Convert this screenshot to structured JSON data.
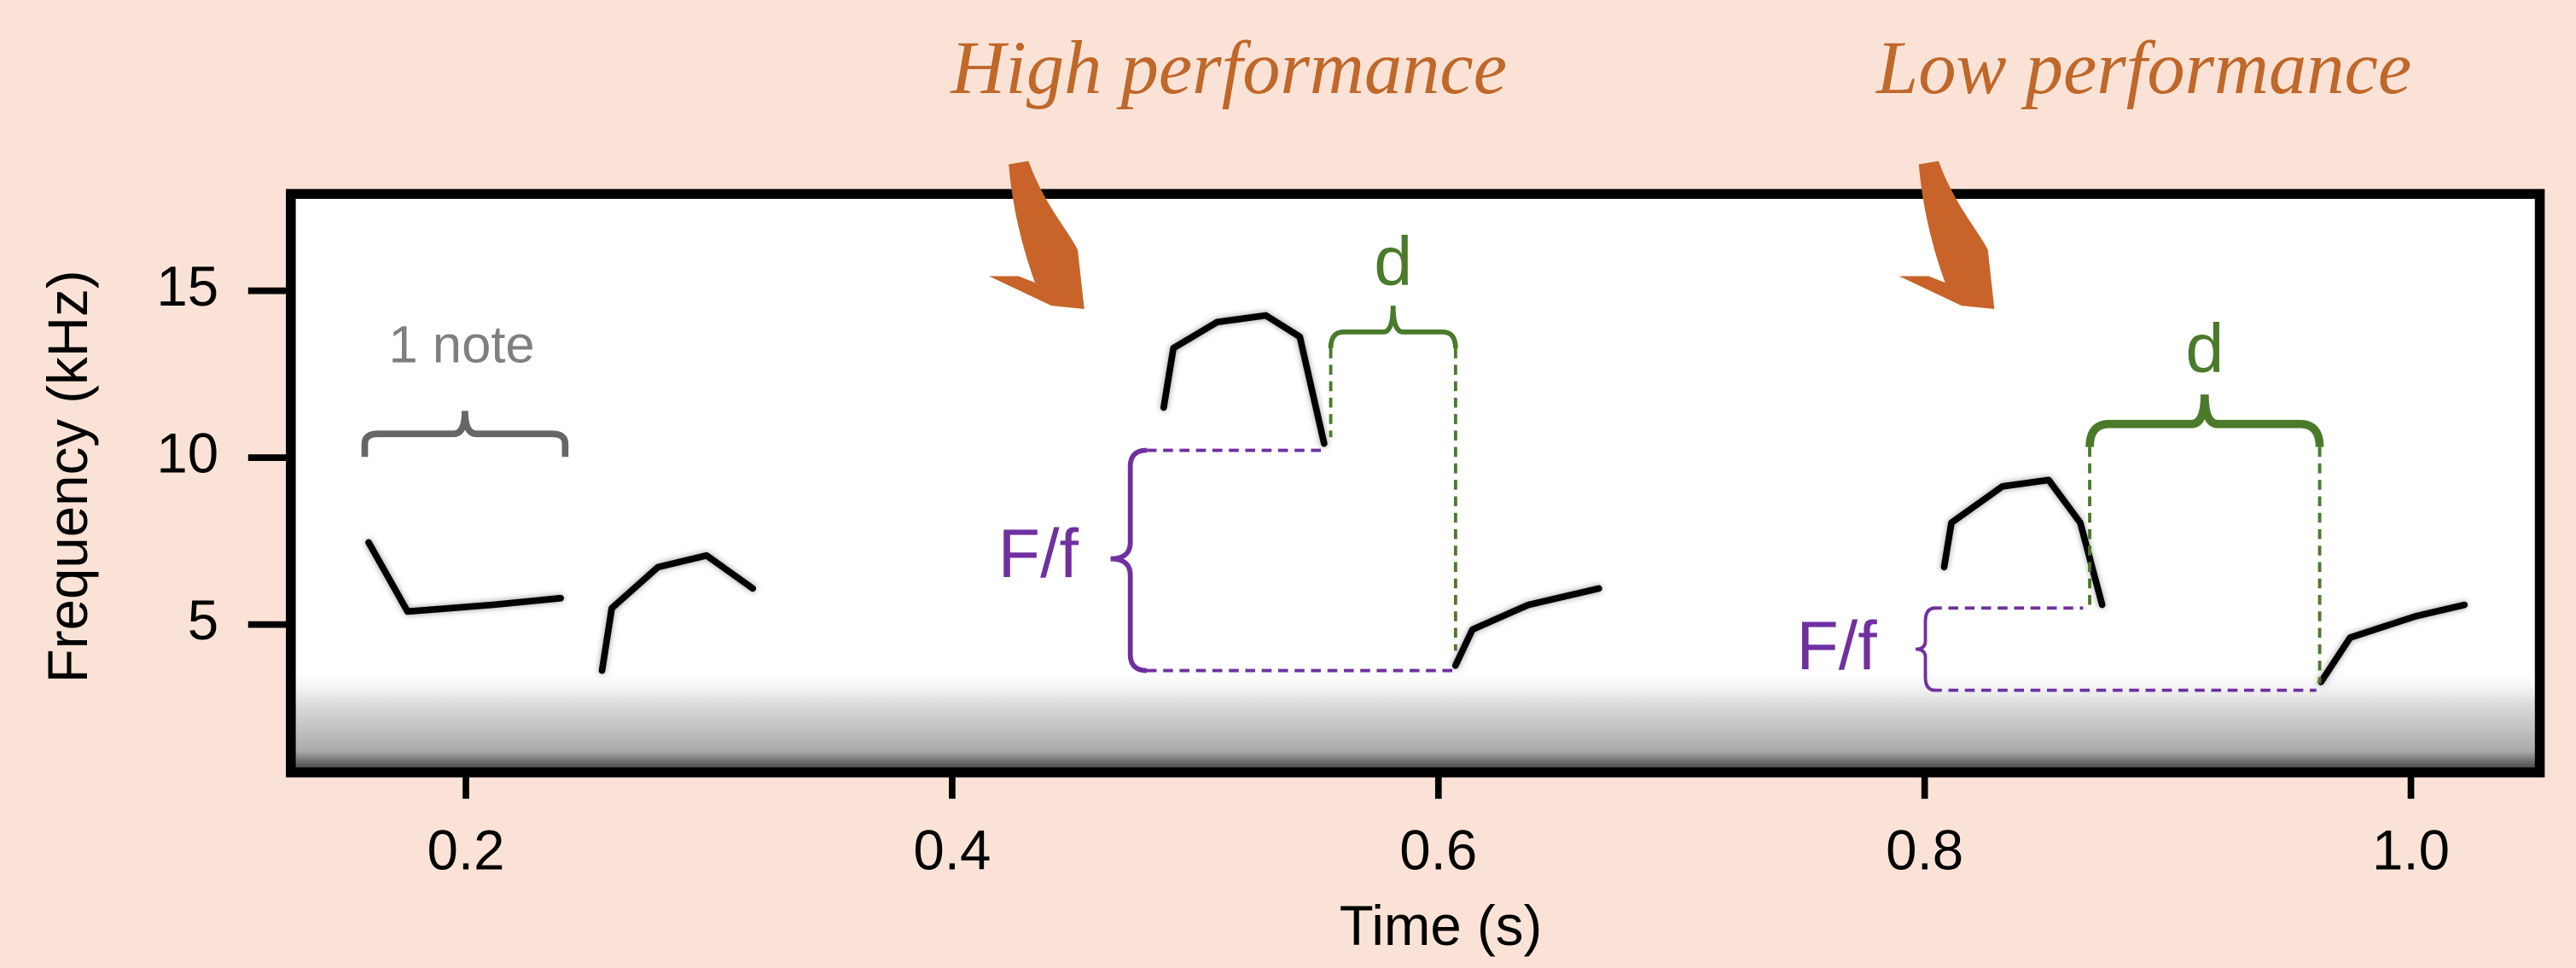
{
  "chart_data": {
    "type": "spectrogram",
    "xlabel": "Time (s)",
    "ylabel": "Frequency (kHz)",
    "xlim": [
      0.128,
      1.053
    ],
    "ylim": [
      0.57,
      17.9
    ],
    "xticks": [
      0.2,
      0.4,
      0.6,
      0.8,
      {
        "value": 1.0,
        "label": "1.0"
      }
    ],
    "yticks": [
      5,
      10,
      15
    ],
    "notes": [
      {
        "x": [
          0.16,
          0.176,
          0.211,
          0.239
        ],
        "values": [
          7.46,
          5.39,
          5.59,
          5.79
        ]
      },
      {
        "x": [
          0.256,
          0.26,
          0.279,
          0.299,
          0.318
        ],
        "values": [
          3.62,
          5.49,
          6.72,
          7.07,
          6.08
        ]
      },
      {
        "x": [
          0.487,
          0.491,
          0.509,
          0.529,
          0.543,
          0.553
        ],
        "values": [
          11.5,
          13.28,
          14.06,
          14.26,
          13.62,
          10.42
        ]
      },
      {
        "x": [
          0.607,
          0.614,
          0.637,
          0.666
        ],
        "values": [
          3.77,
          4.85,
          5.59,
          6.08
        ]
      },
      {
        "x": [
          0.808,
          0.811,
          0.832,
          0.851,
          0.864,
          0.873
        ],
        "values": [
          6.72,
          8.05,
          9.14,
          9.33,
          8.05,
          5.59
        ]
      },
      {
        "x": [
          0.963,
          0.975,
          1.002,
          1.022
        ],
        "values": [
          3.28,
          4.61,
          5.25,
          5.59
        ]
      }
    ],
    "annotations": [
      "High performance",
      "Low performance",
      "1 note",
      "d",
      "F/f",
      "d",
      "F/f"
    ]
  }
}
